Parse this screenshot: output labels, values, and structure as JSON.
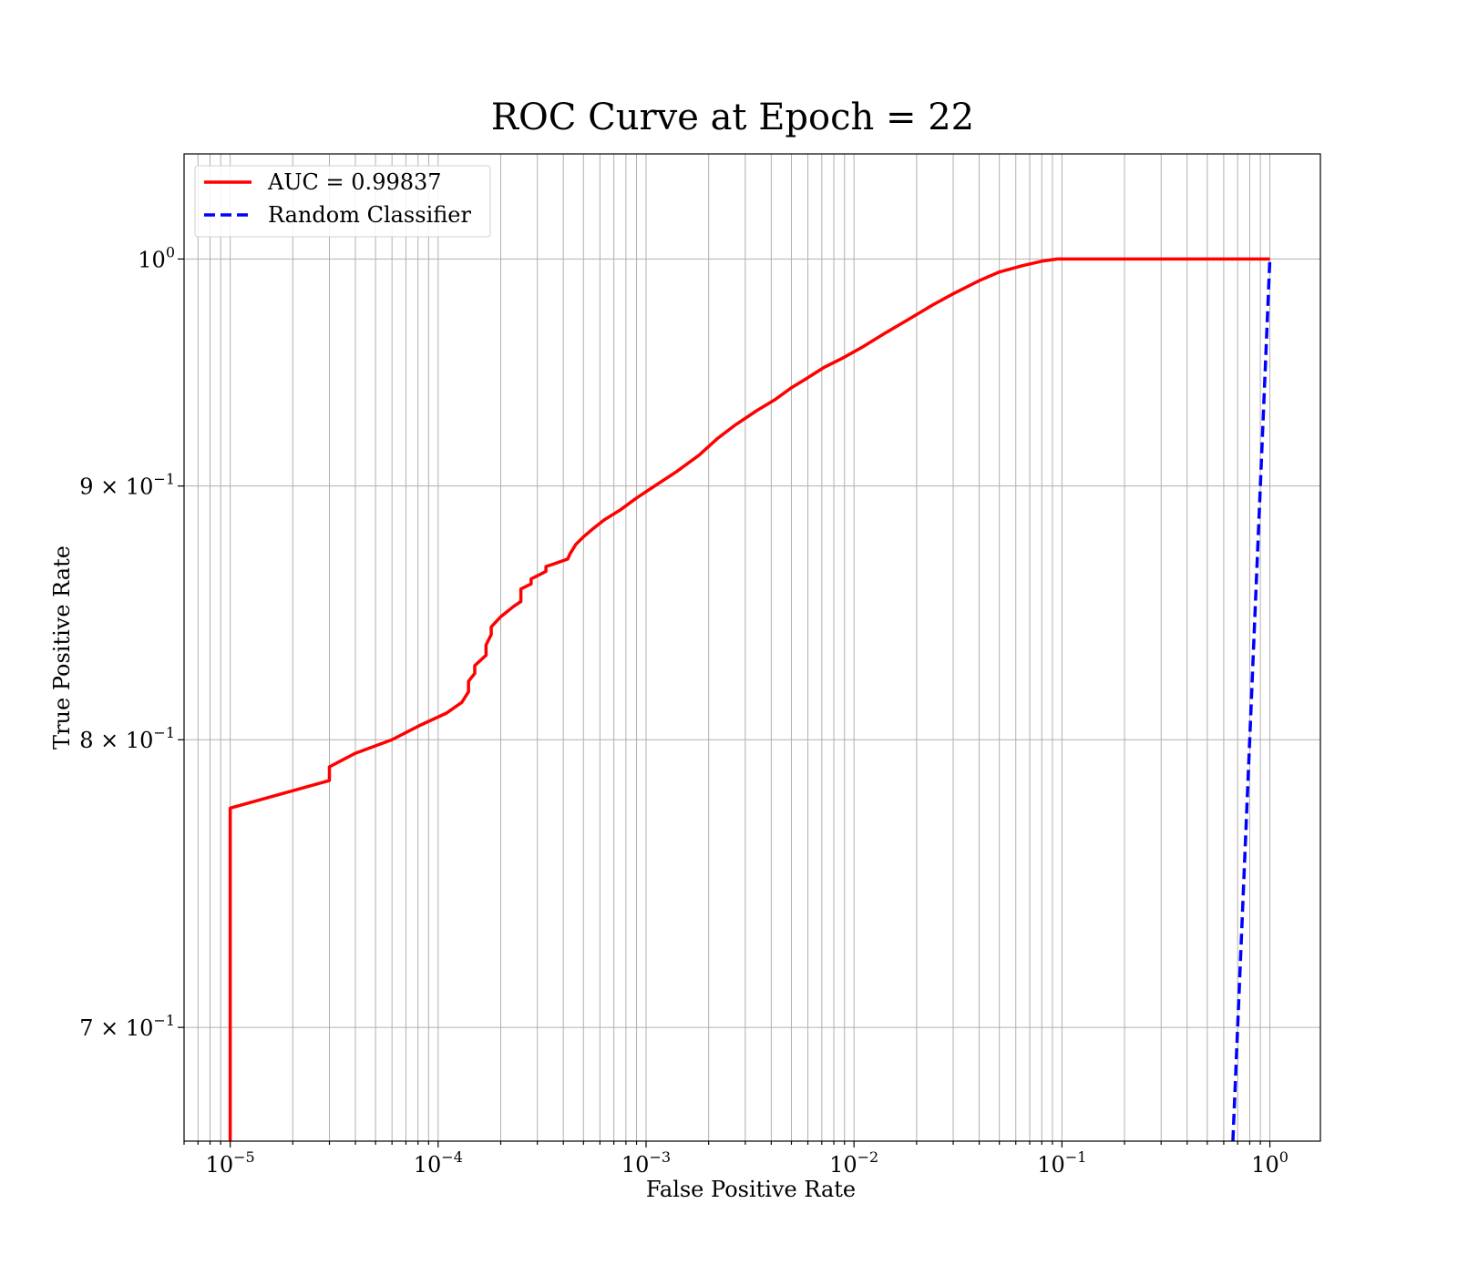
{
  "chart_data": {
    "type": "line",
    "title": "ROC Curve at Epoch = 22",
    "xlabel": "False Positive Rate",
    "ylabel": "True Positive Rate",
    "xscale": "log",
    "yscale": "log",
    "xlim": [
      6e-06,
      1.75
    ],
    "ylim": [
      0.664,
      1.05
    ],
    "grid": true,
    "legend_placement": "top-left",
    "x_ticks": [
      {
        "base": "10",
        "exp": "−5"
      },
      {
        "base": "10",
        "exp": "−4"
      },
      {
        "base": "10",
        "exp": "−3"
      },
      {
        "base": "10",
        "exp": "−2"
      },
      {
        "base": "10",
        "exp": "−1"
      },
      {
        "base": "10",
        "exp": "0"
      }
    ],
    "y_ticks": [
      {
        "base": "7 × 10",
        "exp": "−1"
      },
      {
        "base": "8 × 10",
        "exp": "−1"
      },
      {
        "base": "9 × 10",
        "exp": "−1"
      },
      {
        "base": "10",
        "exp": "0"
      }
    ],
    "series": [
      {
        "name": "AUC = 0.99837",
        "color": "#ff0000",
        "style": "solid",
        "x": [
          1e-05,
          1e-05,
          1e-05,
          1e-05,
          3e-05,
          3e-05,
          4e-05,
          6e-05,
          8e-05,
          0.00011,
          0.00013,
          0.00014,
          0.00014,
          0.00015,
          0.00015,
          0.00017,
          0.00017,
          0.00018,
          0.00018,
          0.0002,
          0.00023,
          0.00025,
          0.00025,
          0.00028,
          0.00028,
          0.00033,
          0.00033,
          0.00036,
          0.00042,
          0.00043,
          0.00046,
          0.0005,
          0.00055,
          0.00063,
          0.00075,
          0.0009,
          0.0011,
          0.0014,
          0.0018,
          0.0022,
          0.0027,
          0.0034,
          0.0042,
          0.005,
          0.0059,
          0.0072,
          0.0088,
          0.011,
          0.014,
          0.018,
          0.024,
          0.03,
          0.04,
          0.05,
          0.065,
          0.08,
          0.095,
          0.12,
          1.0
        ],
        "y": [
          0.66,
          0.675,
          0.72,
          0.775,
          0.785,
          0.79,
          0.795,
          0.8,
          0.805,
          0.81,
          0.814,
          0.818,
          0.822,
          0.825,
          0.828,
          0.832,
          0.836,
          0.84,
          0.843,
          0.847,
          0.851,
          0.853,
          0.858,
          0.86,
          0.862,
          0.865,
          0.867,
          0.868,
          0.87,
          0.872,
          0.876,
          0.879,
          0.882,
          0.886,
          0.89,
          0.895,
          0.9,
          0.906,
          0.913,
          0.92,
          0.926,
          0.932,
          0.937,
          0.942,
          0.946,
          0.951,
          0.955,
          0.96,
          0.966,
          0.972,
          0.979,
          0.984,
          0.99,
          0.994,
          0.997,
          0.999,
          1.0,
          1.0,
          1.0
        ]
      },
      {
        "name": "Random Classifier",
        "color": "#0000ff",
        "style": "dashed",
        "x": [
          0.664,
          1.0
        ],
        "y": [
          0.664,
          1.0
        ]
      }
    ]
  }
}
